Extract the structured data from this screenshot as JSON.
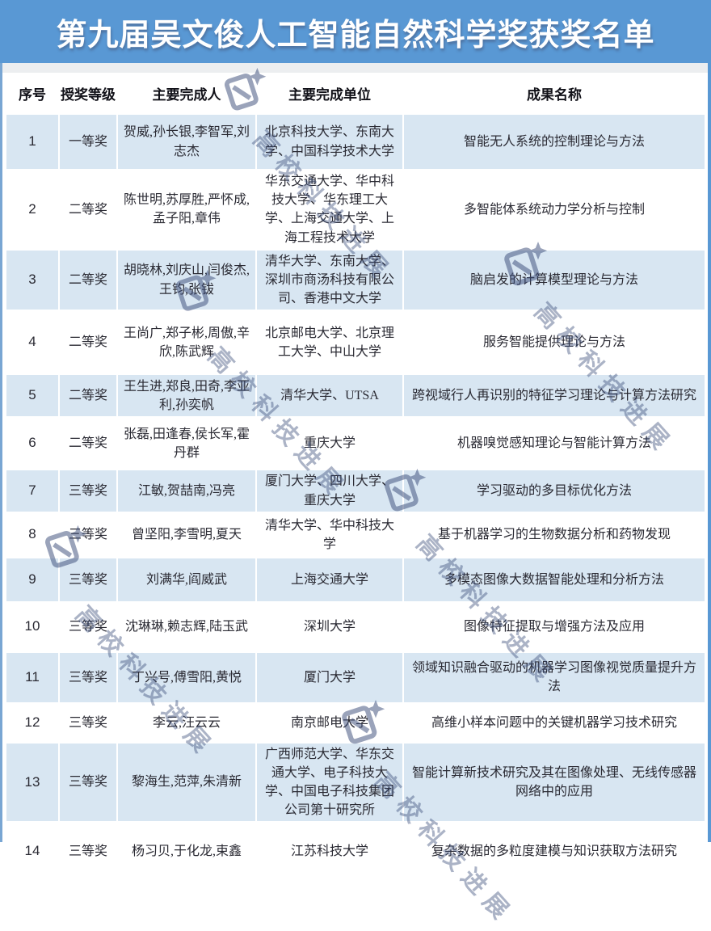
{
  "banner": {
    "title": "第九届吴文俊人工智能自然科学奖获奖名单"
  },
  "watermark": {
    "text": "高校科技进展"
  },
  "colors": {
    "banner_bg": "#5998D4",
    "banner_text": "#FFFFFF",
    "row_alt_bg": "#D8E6F2",
    "row_bg": "#FFFFFF",
    "body_text": "#2A2A33",
    "watermark": "#384A78"
  },
  "table": {
    "headers": [
      "序号",
      "授奖等级",
      "主要完成人",
      "主要完成单位",
      "成果名称"
    ],
    "rows": [
      {
        "no": "1",
        "grade": "一等奖",
        "people": "贺威,孙长银,李智军,刘志杰",
        "units": "北京科技大学、东南大学、中国科学技术大学",
        "result": "智能无人系统的控制理论与方法"
      },
      {
        "no": "2",
        "grade": "二等奖",
        "people": "陈世明,苏厚胜,严怀成,孟子阳,章伟",
        "units": "华东交通大学、华中科技大学、华东理工大学、上海交通大学、上海工程技术大学",
        "result": "多智能体系统动力学分析与控制"
      },
      {
        "no": "3",
        "grade": "二等奖",
        "people": "胡晓林,刘庆山,闫俊杰,王钧,张钹",
        "units": "清华大学、东南大学、深圳市商汤科技有限公司、香港中文大学",
        "result": "脑启发的计算模型理论与方法"
      },
      {
        "no": "4",
        "grade": "二等奖",
        "people": "王尚广,郑子彬,周傲,辛欣,陈武辉",
        "units": "北京邮电大学、北京理工大学、中山大学",
        "result": "服务智能提供理论与方法"
      },
      {
        "no": "5",
        "grade": "二等奖",
        "people": "王生进,郑良,田奇,李亚利,孙奕帆",
        "units": "清华大学、UTSA",
        "result": "跨视域行人再识别的特征学习理论与计算方法研究"
      },
      {
        "no": "6",
        "grade": "二等奖",
        "people": "张磊,田逢春,侯长军,霍丹群",
        "units": "重庆大学",
        "result": "机器嗅觉感知理论与智能计算方法"
      },
      {
        "no": "7",
        "grade": "三等奖",
        "people": "江敏,贺喆南,冯亮",
        "units": "厦门大学、四川大学、重庆大学",
        "result": "学习驱动的多目标优化方法"
      },
      {
        "no": "8",
        "grade": "三等奖",
        "people": "曾坚阳,李雪明,夏天",
        "units": "清华大学、华中科技大学",
        "result": "基于机器学习的生物数据分析和药物发现"
      },
      {
        "no": "9",
        "grade": "三等奖",
        "people": "刘满华,阎威武",
        "units": "上海交通大学",
        "result": "多模态图像大数据智能处理和分析方法"
      },
      {
        "no": "10",
        "grade": "三等奖",
        "people": "沈琳琳,赖志辉,陆玉武",
        "units": "深圳大学",
        "result": "图像特征提取与增强方法及应用"
      },
      {
        "no": "11",
        "grade": "三等奖",
        "people": "丁兴号,傅雪阳,黄悦",
        "units": "厦门大学",
        "result": "领域知识融合驱动的机器学习图像视觉质量提升方法"
      },
      {
        "no": "12",
        "grade": "三等奖",
        "people": "李云,汪云云",
        "units": "南京邮电大学",
        "result": "高维小样本问题中的关键机器学习技术研究"
      },
      {
        "no": "13",
        "grade": "三等奖",
        "people": "黎海生,范萍,朱清新",
        "units": "广西师范大学、华东交通大学、电子科技大学、中国电子科技集团公司第十研究所",
        "result": "智能计算新技术研究及其在图像处理、无线传感器网络中的应用"
      },
      {
        "no": "14",
        "grade": "三等奖",
        "people": "杨习贝,于化龙,束鑫",
        "units": "江苏科技大学",
        "result": "复杂数据的多粒度建模与知识获取方法研究"
      }
    ]
  }
}
